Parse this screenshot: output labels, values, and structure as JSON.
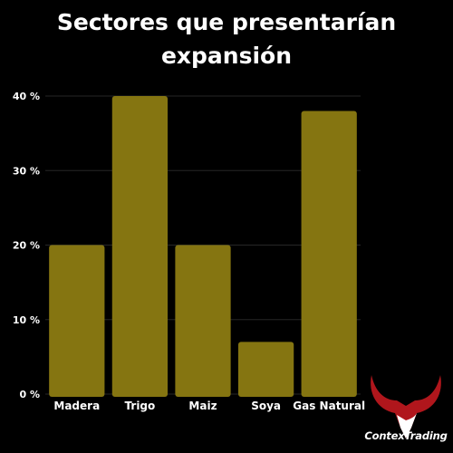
{
  "chart_data": {
    "type": "bar",
    "title": "Sectores que presentarían\nexpansión",
    "categories": [
      "Madera",
      "Trigo",
      "Maiz",
      "Soya",
      "Gas Natural"
    ],
    "values": [
      20,
      40,
      20,
      7,
      38
    ],
    "ylim": [
      0,
      40
    ],
    "yticks": [
      0,
      10,
      20,
      30,
      40
    ],
    "ytick_labels": [
      "0 %",
      "10 %",
      "20 %",
      "30 %",
      "40 %"
    ],
    "bar_color": "#857511",
    "grid": true,
    "legend": "none"
  },
  "branding": {
    "logo_text": "ContexTrading",
    "logo_icon": "bull-horns-icon",
    "logo_colors": [
      "#b0161c",
      "#ffffff"
    ]
  }
}
